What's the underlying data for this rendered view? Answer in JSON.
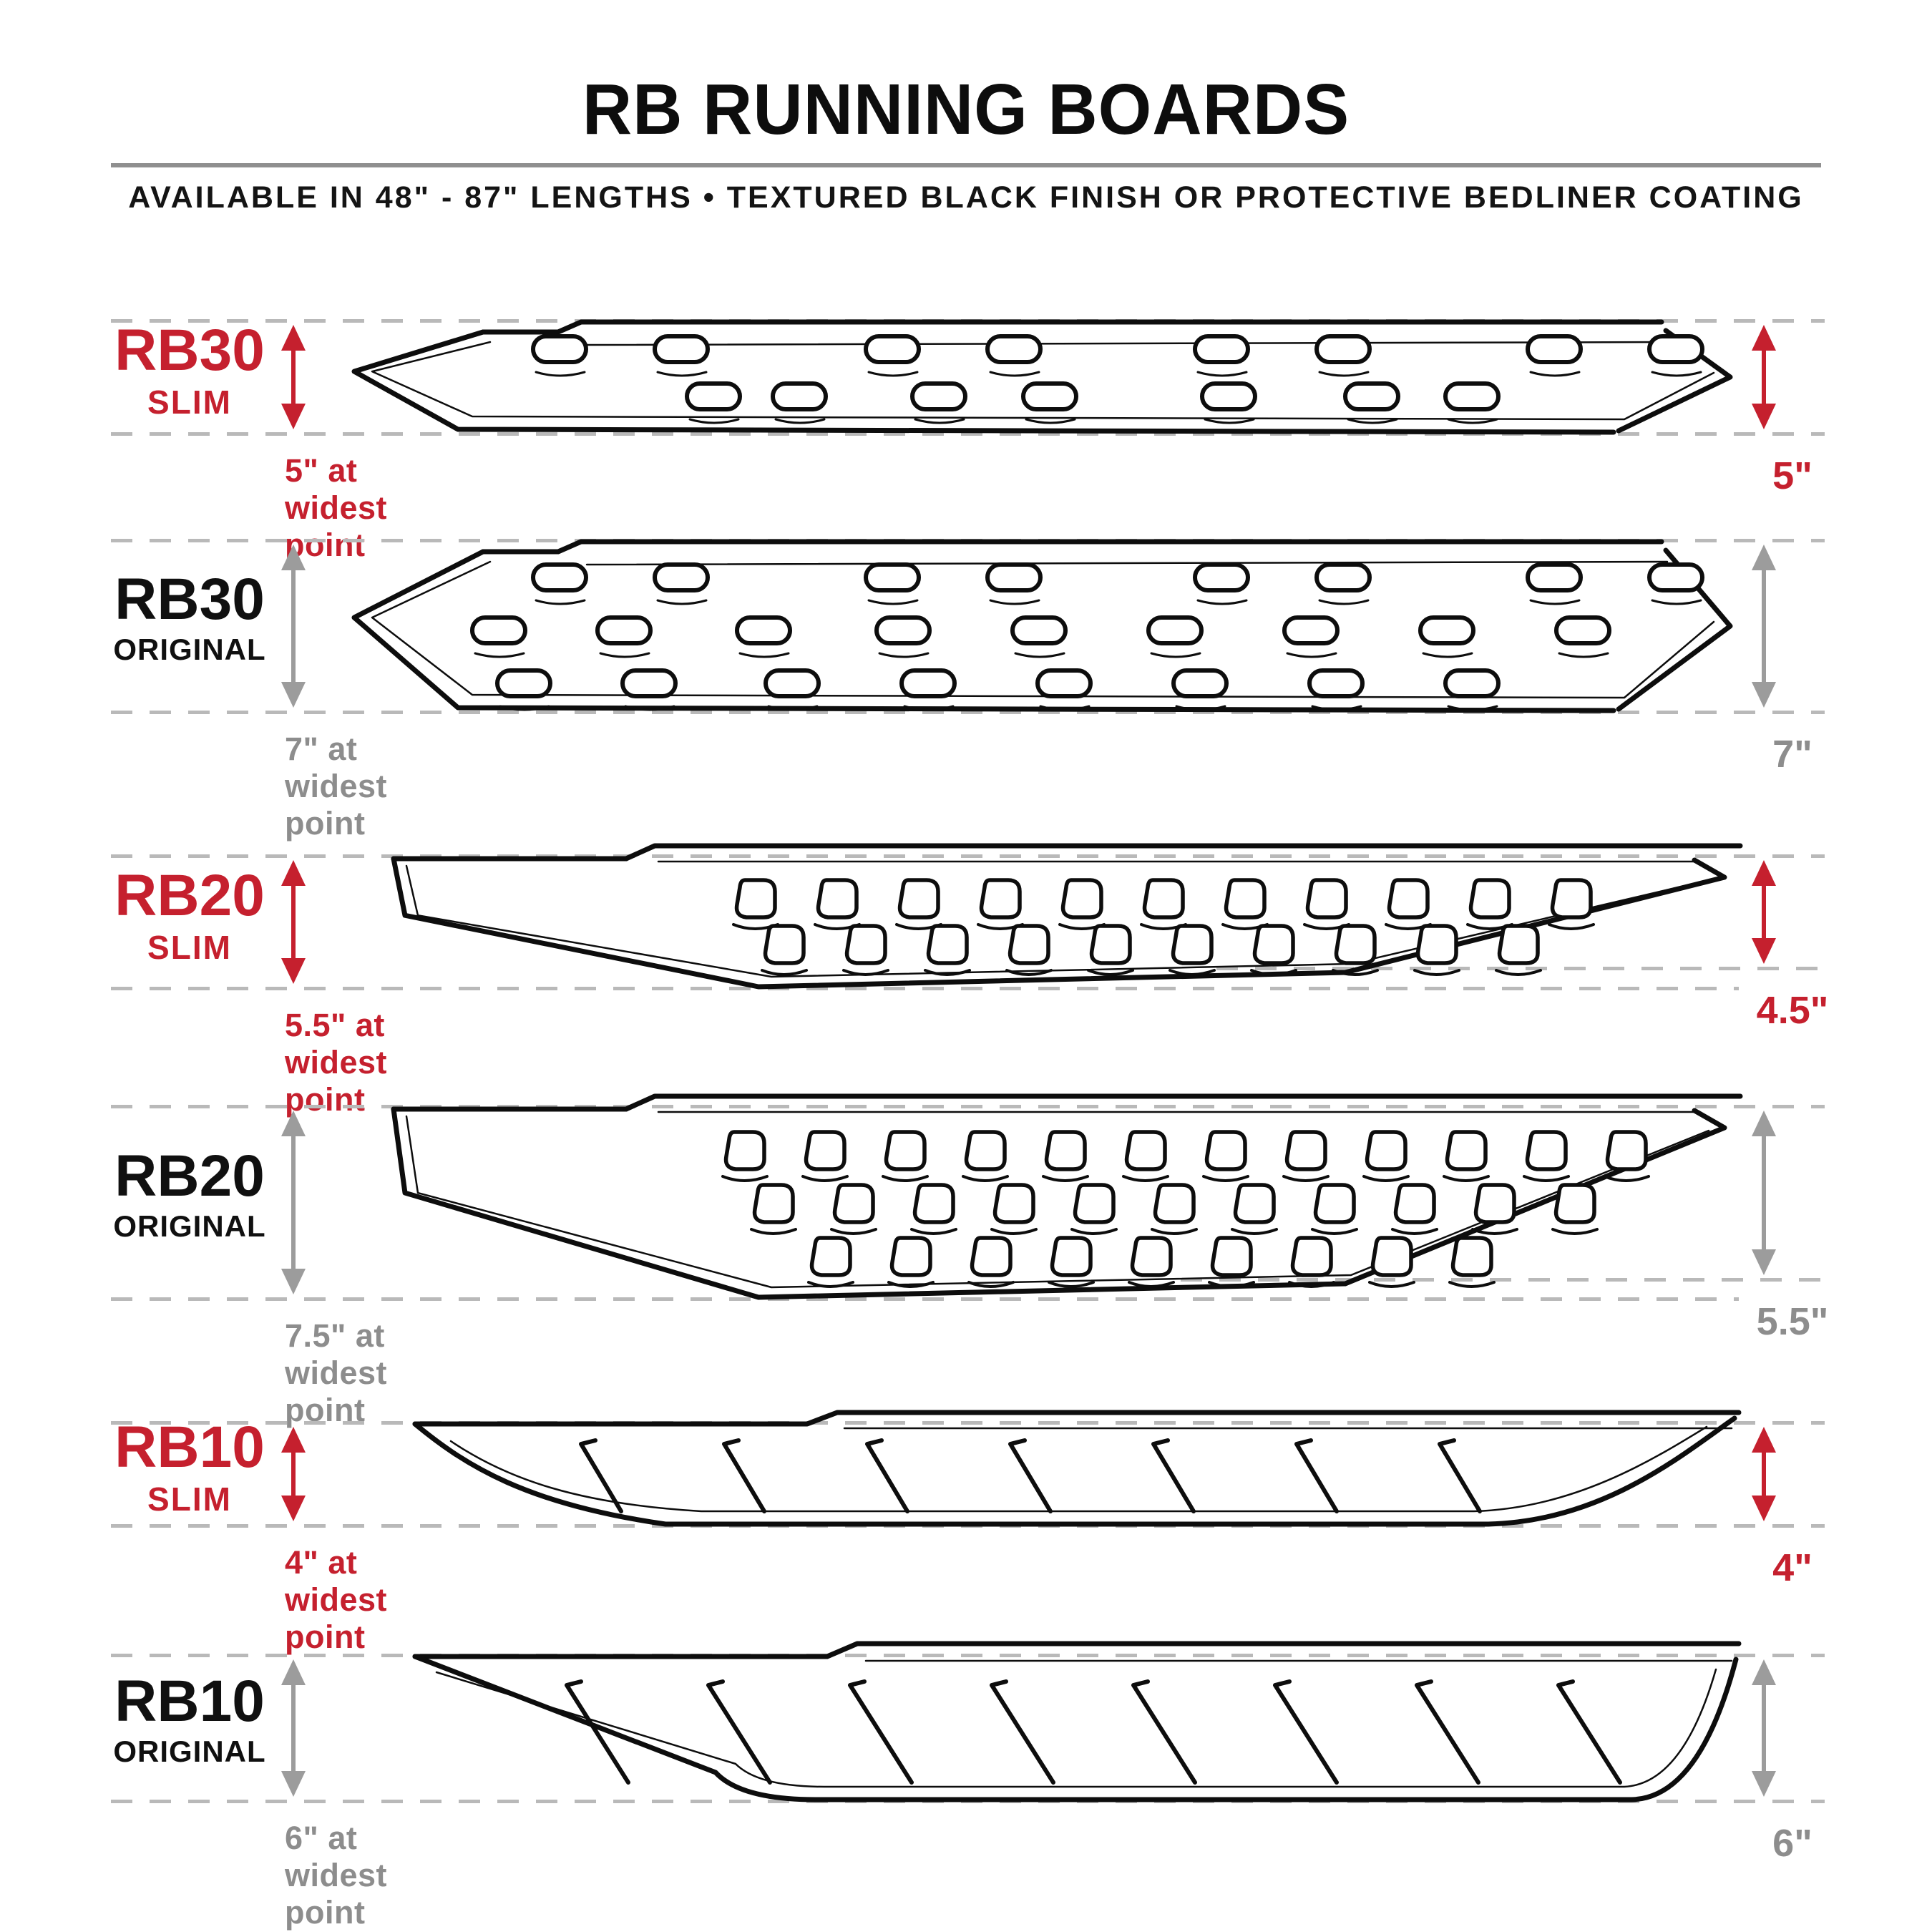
{
  "header": {
    "title": "RB RUNNING BOARDS",
    "subtitle": "AVAILABLE IN 48\" - 87\" LENGTHS • TEXTURED BLACK FINISH OR PROTECTIVE BEDLINER COATING"
  },
  "colors": {
    "slim_red": "#c5202e",
    "original_black": "#101010",
    "neutral_arrow_gray": "#9c9c9c",
    "neutral_text_gray": "#8d8d8d",
    "dash_gray": "#b9b9b9",
    "line_black": "#0d0d0d"
  },
  "products": [
    {
      "model": "RB30",
      "variant": "SLIM",
      "accent": "red",
      "widest": "5\" at widest point",
      "dim": "5\"",
      "board": {
        "type": "slots",
        "rows": 2
      }
    },
    {
      "model": "RB30",
      "variant": "ORIGINAL",
      "accent": "gray",
      "widest": "7\" at widest point",
      "dim": "7\"",
      "board": {
        "type": "slots",
        "rows": 3
      }
    },
    {
      "model": "RB20",
      "variant": "SLIM",
      "accent": "red",
      "widest": "5.5\" at widest point",
      "dim": "4.5\"",
      "board": {
        "type": "dholes",
        "rows": 2
      }
    },
    {
      "model": "RB20",
      "variant": "ORIGINAL",
      "accent": "gray",
      "widest": "7.5\" at widest point",
      "dim": "5.5\"",
      "board": {
        "type": "dholes",
        "rows": 3
      }
    },
    {
      "model": "RB10",
      "variant": "SLIM",
      "accent": "red",
      "widest": "4\" at widest point",
      "dim": "4\"",
      "board": {
        "type": "slashes",
        "count": 7
      }
    },
    {
      "model": "RB10",
      "variant": "ORIGINAL",
      "accent": "gray",
      "widest": "6\" at widest point",
      "dim": "6\"",
      "board": {
        "type": "slashes",
        "count": 8
      }
    }
  ]
}
